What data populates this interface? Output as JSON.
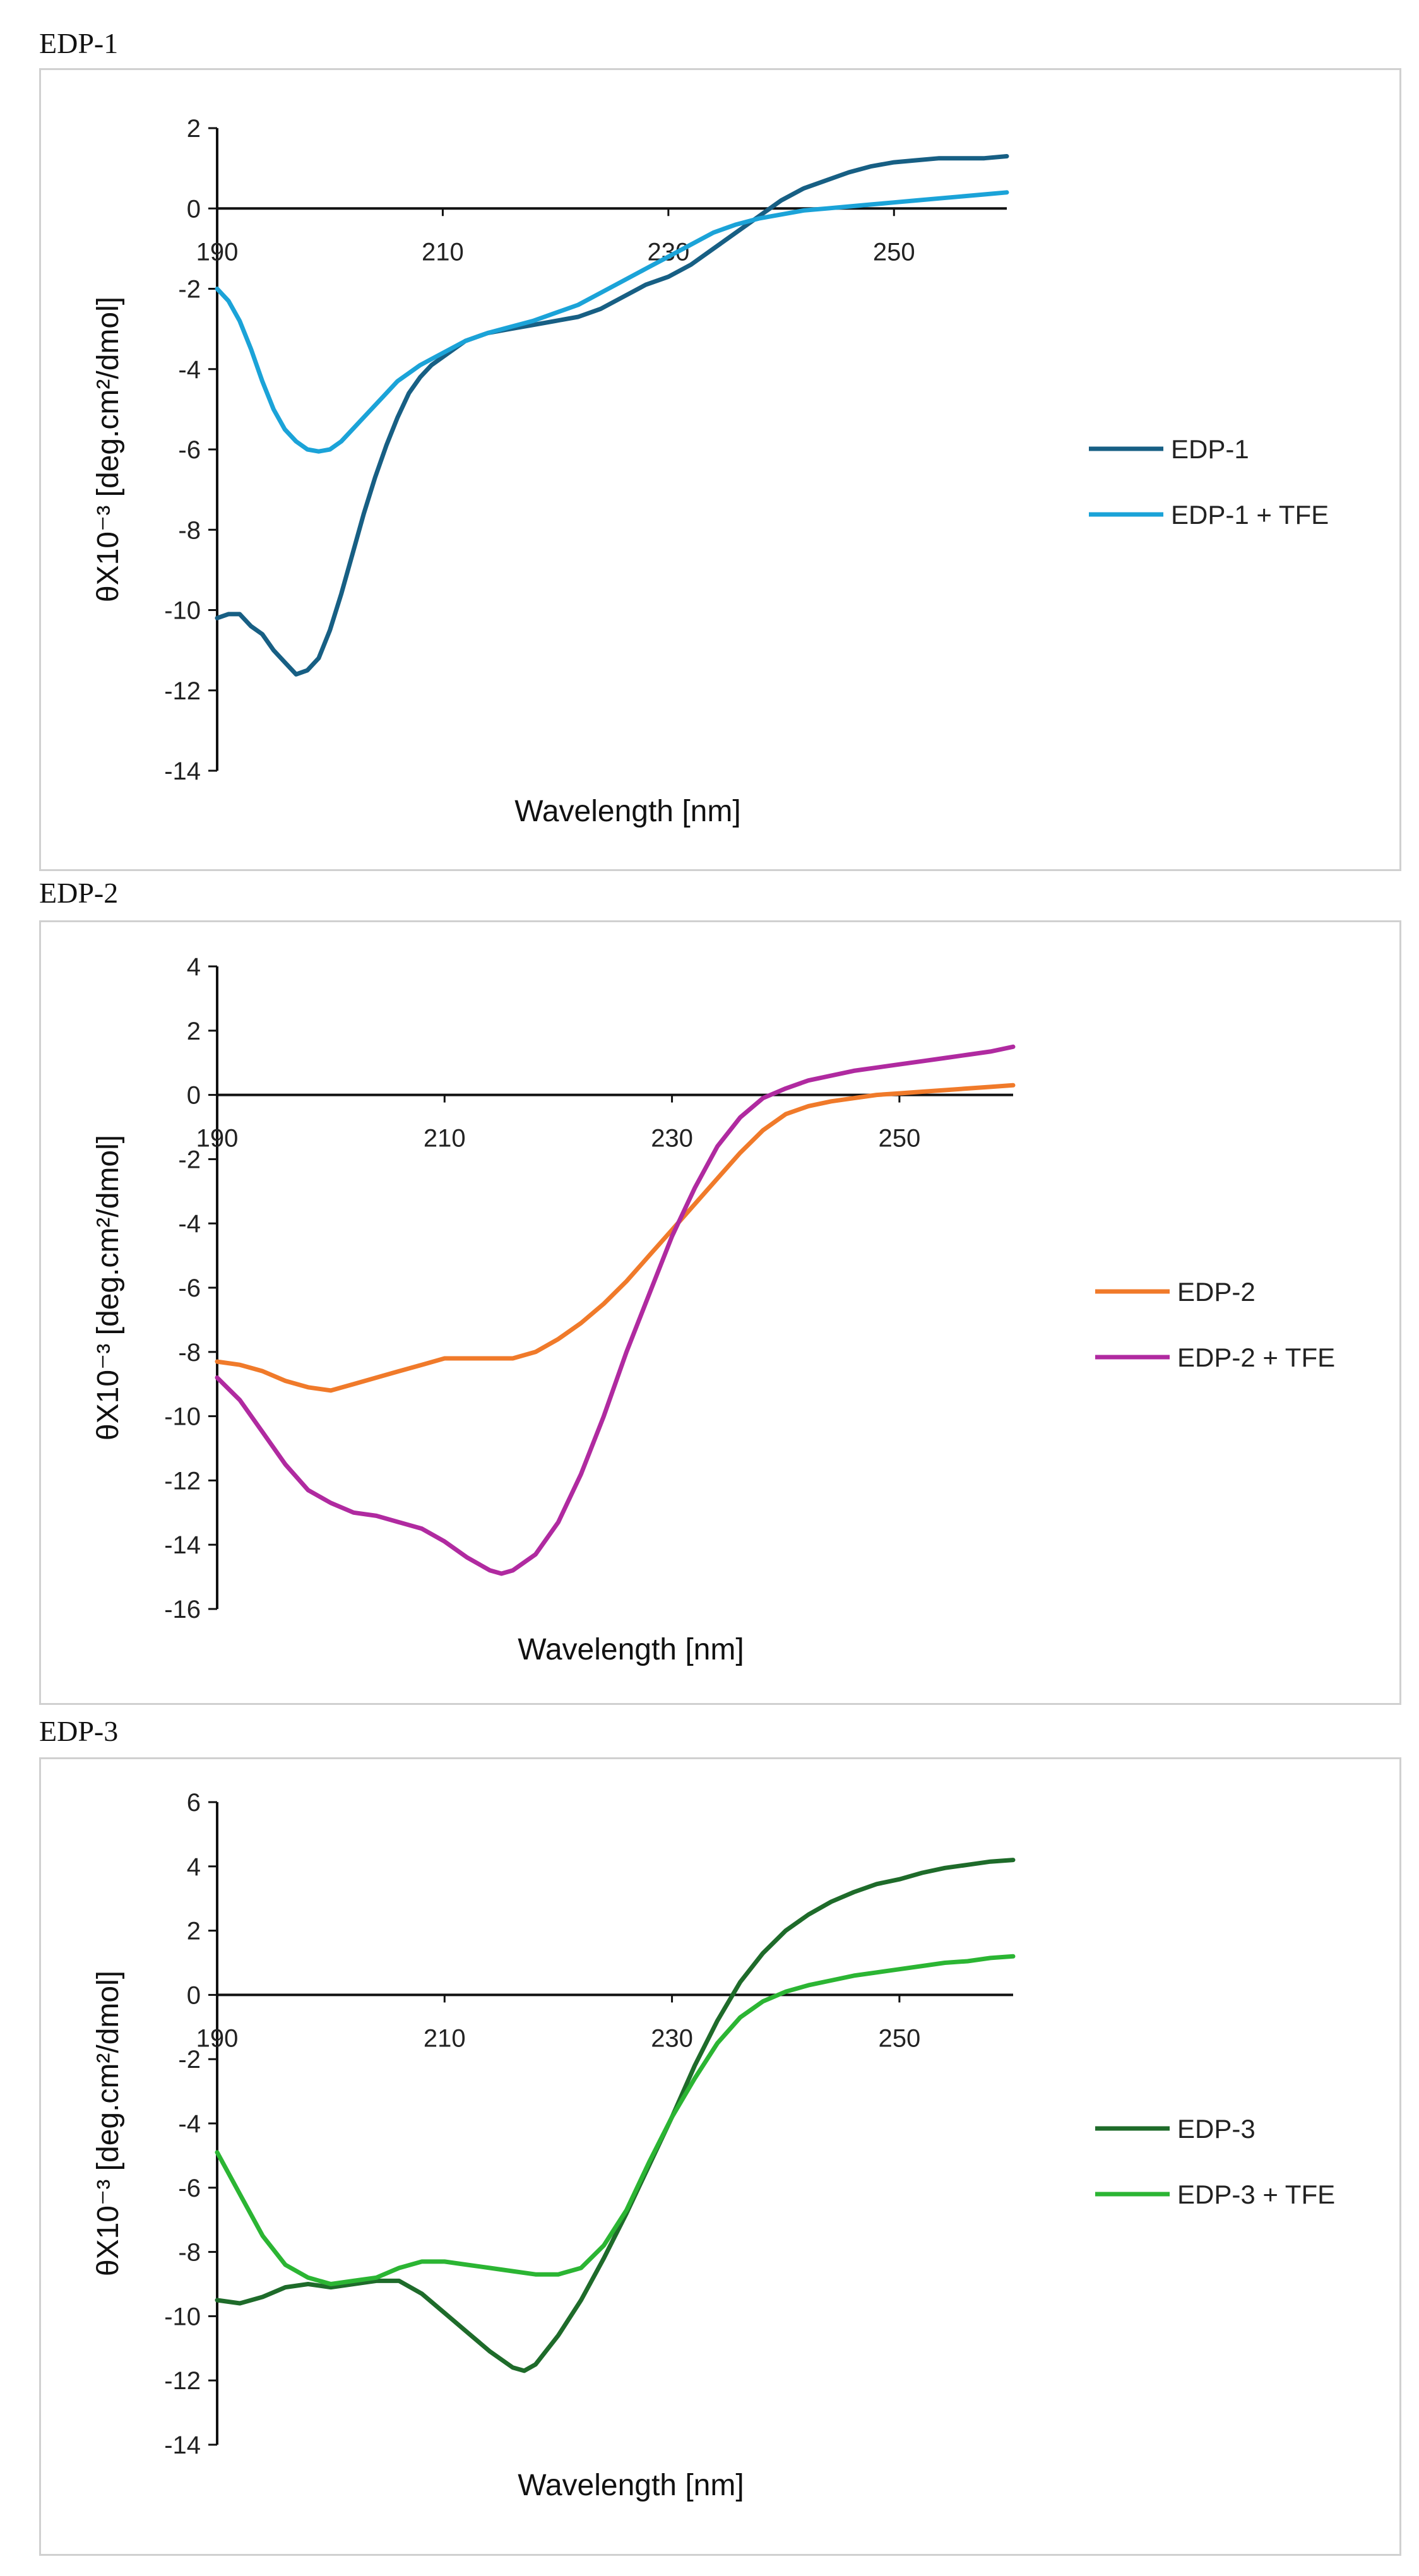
{
  "charts": [
    {
      "panel_title": "EDP-1",
      "chart_data": {
        "type": "line",
        "title": "",
        "xlabel": "Wavelength [nm]",
        "ylabel": "θX10⁻³ [deg.cm²/dmol]",
        "xlim": [
          190,
          260
        ],
        "ylim": [
          -14,
          2
        ],
        "x_ticks": [
          190,
          210,
          230,
          250
        ],
        "y_ticks": [
          2,
          0,
          -2,
          -4,
          -6,
          -8,
          -10,
          -12,
          -14
        ],
        "grid": false,
        "legend_position": "right",
        "series": [
          {
            "name": "EDP-1",
            "color": "#175f84",
            "x": [
              190,
              191,
              192,
              193,
              194,
              195,
              196,
              197,
              198,
              199,
              200,
              201,
              202,
              203,
              204,
              205,
              206,
              207,
              208,
              209,
              210,
              212,
              214,
              216,
              218,
              220,
              222,
              224,
              226,
              228,
              230,
              232,
              234,
              236,
              238,
              240,
              242,
              244,
              246,
              248,
              250,
              252,
              254,
              256,
              258,
              260
            ],
            "y": [
              -10.2,
              -10.1,
              -10.1,
              -10.4,
              -10.6,
              -11,
              -11.3,
              -11.6,
              -11.5,
              -11.2,
              -10.5,
              -9.6,
              -8.6,
              -7.6,
              -6.7,
              -5.9,
              -5.2,
              -4.6,
              -4.2,
              -3.9,
              -3.7,
              -3.3,
              -3.1,
              -3.0,
              -2.9,
              -2.8,
              -2.7,
              -2.5,
              -2.2,
              -1.9,
              -1.7,
              -1.4,
              -1.0,
              -0.6,
              -0.2,
              0.2,
              0.5,
              0.7,
              0.9,
              1.05,
              1.15,
              1.2,
              1.25,
              1.25,
              1.25,
              1.3
            ]
          },
          {
            "name": "EDP-1  + TFE",
            "color": "#1ba3d8",
            "x": [
              190,
              191,
              192,
              193,
              194,
              195,
              196,
              197,
              198,
              199,
              200,
              201,
              202,
              203,
              204,
              205,
              206,
              207,
              208,
              209,
              210,
              212,
              214,
              216,
              218,
              220,
              222,
              224,
              226,
              228,
              230,
              232,
              234,
              236,
              238,
              240,
              242,
              244,
              246,
              248,
              250,
              252,
              254,
              256,
              258,
              260
            ],
            "y": [
              -2.0,
              -2.3,
              -2.8,
              -3.5,
              -4.3,
              -5.0,
              -5.5,
              -5.8,
              -6.0,
              -6.05,
              -6.0,
              -5.8,
              -5.5,
              -5.2,
              -4.9,
              -4.6,
              -4.3,
              -4.1,
              -3.9,
              -3.75,
              -3.6,
              -3.3,
              -3.1,
              -2.95,
              -2.8,
              -2.6,
              -2.4,
              -2.1,
              -1.8,
              -1.5,
              -1.2,
              -0.9,
              -0.6,
              -0.4,
              -0.25,
              -0.15,
              -0.05,
              0.0,
              0.05,
              0.1,
              0.15,
              0.2,
              0.25,
              0.3,
              0.35,
              0.4
            ]
          }
        ]
      }
    },
    {
      "panel_title": "EDP-2",
      "chart_data": {
        "type": "line",
        "title": "",
        "xlabel": "Wavelength [nm]",
        "ylabel": "θX10⁻³ [deg.cm²/dmol]",
        "xlim": [
          190,
          260
        ],
        "ylim": [
          -16,
          4
        ],
        "x_ticks": [
          190,
          210,
          230,
          250
        ],
        "y_ticks": [
          4,
          2,
          0,
          -2,
          -4,
          -6,
          -8,
          -10,
          -12,
          -14,
          -16
        ],
        "grid": false,
        "legend_position": "right",
        "series": [
          {
            "name": "EDP-2",
            "color": "#f07a2a",
            "x": [
              190,
              192,
              194,
              196,
              198,
              200,
              202,
              204,
              206,
              208,
              210,
              212,
              214,
              216,
              218,
              220,
              222,
              224,
              226,
              228,
              230,
              232,
              234,
              236,
              238,
              240,
              242,
              244,
              246,
              248,
              250,
              252,
              254,
              256,
              258,
              260
            ],
            "y": [
              -8.3,
              -8.4,
              -8.6,
              -8.9,
              -9.1,
              -9.2,
              -9.0,
              -8.8,
              -8.6,
              -8.4,
              -8.2,
              -8.2,
              -8.2,
              -8.2,
              -8.0,
              -7.6,
              -7.1,
              -6.5,
              -5.8,
              -5.0,
              -4.2,
              -3.4,
              -2.6,
              -1.8,
              -1.1,
              -0.6,
              -0.35,
              -0.2,
              -0.1,
              0.0,
              0.05,
              0.1,
              0.15,
              0.2,
              0.25,
              0.3
            ]
          },
          {
            "name": "EDP-2 + TFE",
            "color": "#b02aa0",
            "x": [
              190,
              192,
              194,
              196,
              198,
              200,
              202,
              204,
              206,
              208,
              210,
              212,
              214,
              215,
              216,
              218,
              220,
              222,
              224,
              226,
              228,
              230,
              232,
              234,
              236,
              238,
              240,
              242,
              244,
              246,
              248,
              250,
              252,
              254,
              256,
              258,
              260
            ],
            "y": [
              -8.8,
              -9.5,
              -10.5,
              -11.5,
              -12.3,
              -12.7,
              -13.0,
              -13.1,
              -13.3,
              -13.5,
              -13.9,
              -14.4,
              -14.8,
              -14.9,
              -14.8,
              -14.3,
              -13.3,
              -11.8,
              -10.0,
              -8.0,
              -6.2,
              -4.4,
              -2.9,
              -1.6,
              -0.7,
              -0.1,
              0.2,
              0.45,
              0.6,
              0.75,
              0.85,
              0.95,
              1.05,
              1.15,
              1.25,
              1.35,
              1.5
            ]
          }
        ]
      }
    },
    {
      "panel_title": "EDP-3",
      "chart_data": {
        "type": "line",
        "title": "",
        "xlabel": "Wavelength [nm]",
        "ylabel": "θX10⁻³ [deg.cm²/dmol]",
        "xlim": [
          190,
          260
        ],
        "ylim": [
          -14,
          6
        ],
        "x_ticks": [
          190,
          210,
          230,
          250
        ],
        "y_ticks": [
          6,
          4,
          2,
          0,
          -2,
          -4,
          -6,
          -8,
          -10,
          -12,
          -14
        ],
        "grid": false,
        "legend_position": "right",
        "series": [
          {
            "name": "EDP-3",
            "color": "#1e6b2a",
            "x": [
              190,
              192,
              194,
              196,
              198,
              200,
              202,
              204,
              206,
              208,
              210,
              212,
              214,
              216,
              217,
              218,
              220,
              222,
              224,
              226,
              228,
              230,
              232,
              234,
              236,
              238,
              240,
              242,
              244,
              246,
              248,
              250,
              252,
              254,
              256,
              258,
              260
            ],
            "y": [
              -9.5,
              -9.6,
              -9.4,
              -9.1,
              -9.0,
              -9.1,
              -9.0,
              -8.9,
              -8.9,
              -9.3,
              -9.9,
              -10.5,
              -11.1,
              -11.6,
              -11.7,
              -11.5,
              -10.6,
              -9.5,
              -8.2,
              -6.8,
              -5.3,
              -3.8,
              -2.2,
              -0.8,
              0.4,
              1.3,
              2.0,
              2.5,
              2.9,
              3.2,
              3.45,
              3.6,
              3.8,
              3.95,
              4.05,
              4.15,
              4.2
            ]
          },
          {
            "name": "EDP-3 + TFE",
            "color": "#2bb533",
            "x": [
              190,
              192,
              194,
              196,
              198,
              200,
              202,
              204,
              206,
              208,
              210,
              212,
              214,
              216,
              218,
              220,
              222,
              224,
              226,
              228,
              230,
              232,
              234,
              236,
              238,
              240,
              242,
              244,
              246,
              248,
              250,
              252,
              254,
              256,
              258,
              260
            ],
            "y": [
              -4.9,
              -6.2,
              -7.5,
              -8.4,
              -8.8,
              -9.0,
              -8.9,
              -8.8,
              -8.5,
              -8.3,
              -8.3,
              -8.4,
              -8.5,
              -8.6,
              -8.7,
              -8.7,
              -8.5,
              -7.8,
              -6.7,
              -5.2,
              -3.8,
              -2.6,
              -1.5,
              -0.7,
              -0.2,
              0.1,
              0.3,
              0.45,
              0.6,
              0.7,
              0.8,
              0.9,
              1.0,
              1.05,
              1.15,
              1.2
            ]
          }
        ]
      }
    }
  ]
}
